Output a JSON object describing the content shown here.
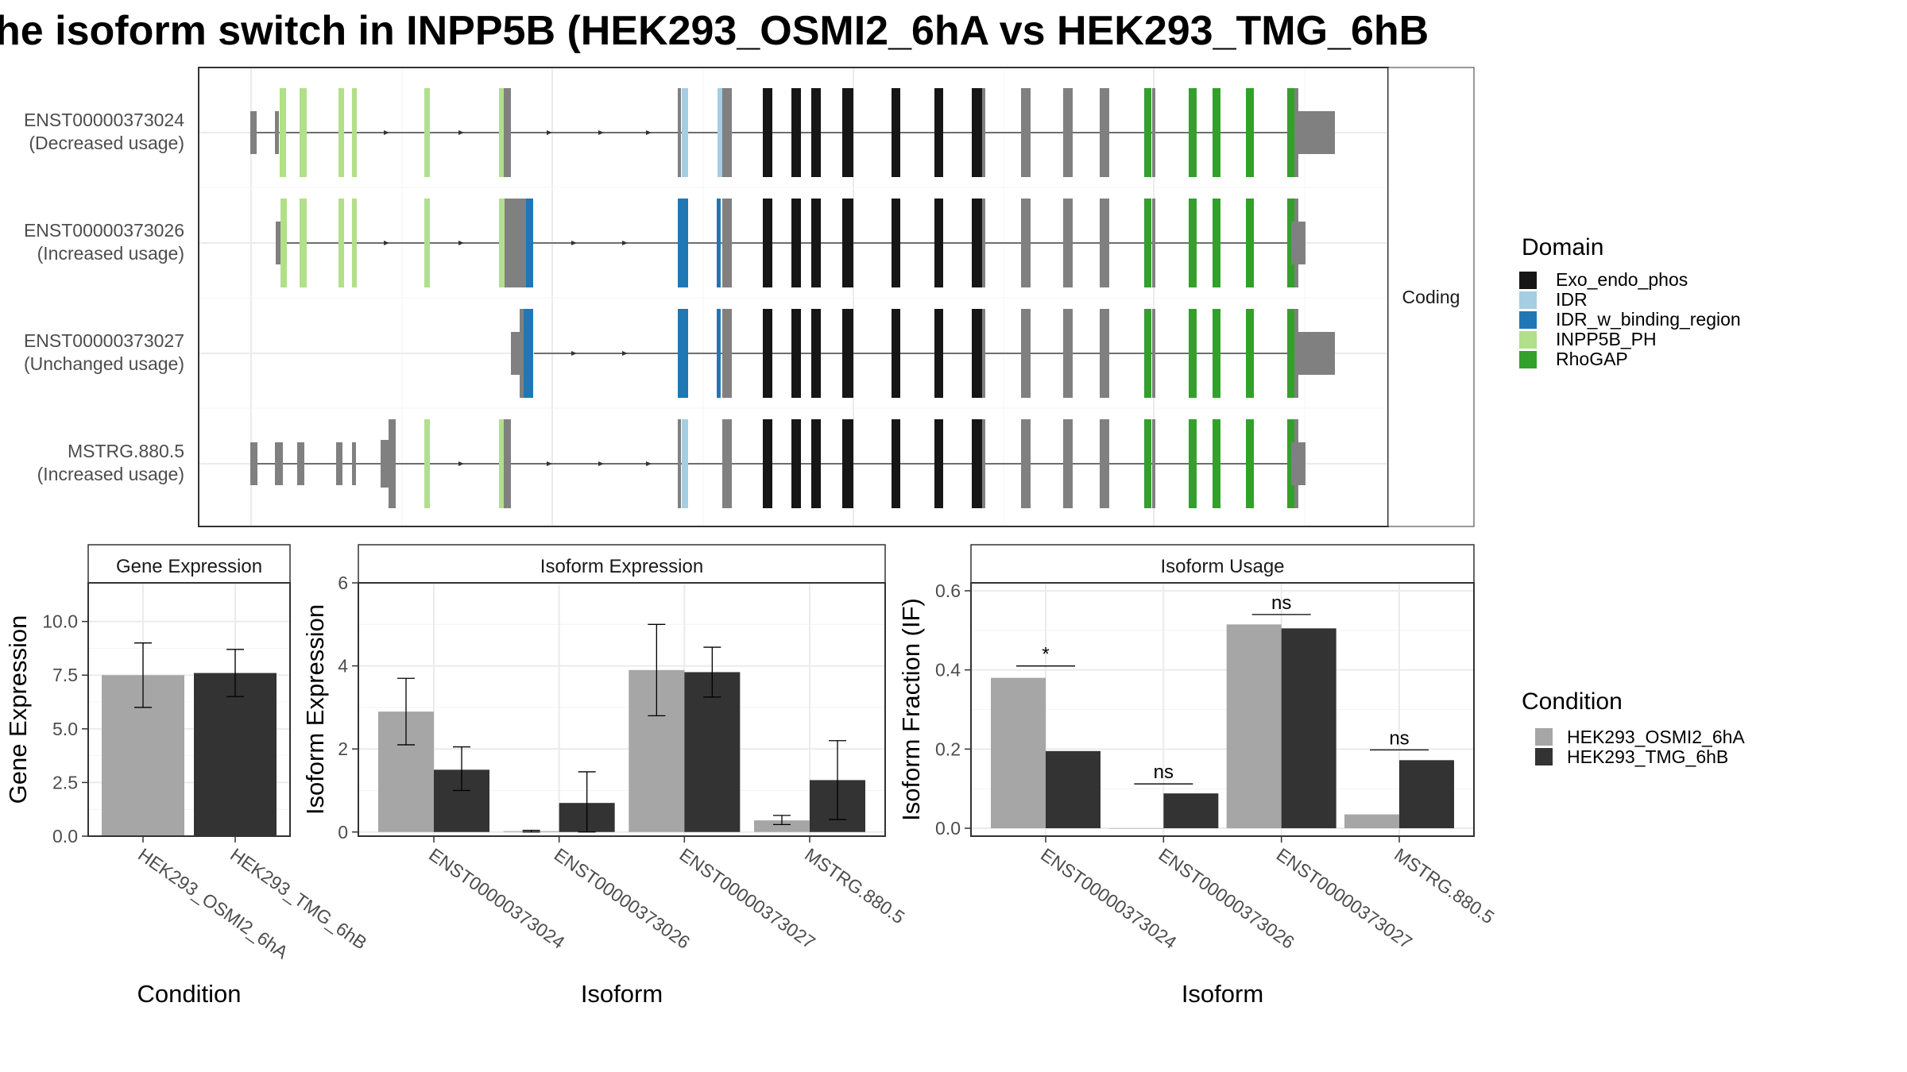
{
  "title": "he isoform switch in INPP5B (HEK293_OSMI2_6hA vs HEK293_TMG_6hB",
  "structure": {
    "facet_label": "Coding",
    "legend_title": "Domain",
    "legend_items": [
      {
        "label": "Exo_endo_phos",
        "color": "#161616"
      },
      {
        "label": "IDR",
        "color": "#a6cee3"
      },
      {
        "label": "IDR_w_binding_region",
        "color": "#1f78b4"
      },
      {
        "label": "INPP5B_PH",
        "color": "#b2df8a"
      },
      {
        "label": "RhoGAP",
        "color": "#33a02c"
      }
    ],
    "transcripts": [
      {
        "id": "ENST00000373024",
        "usage": "(Decreased usage)"
      },
      {
        "id": "ENST00000373026",
        "usage": "(Increased usage)"
      },
      {
        "id": "ENST00000373027",
        "usage": "(Unchanged usage)"
      },
      {
        "id": "MSTRG.880.5",
        "usage": "(Increased usage)"
      }
    ]
  },
  "condition_legend": {
    "title": "Condition",
    "items": [
      {
        "label": "HEK293_OSMI2_6hA",
        "color": "#a6a6a6"
      },
      {
        "label": "HEK293_TMG_6hB",
        "color": "#333333"
      }
    ]
  },
  "chart_data": [
    {
      "type": "bar",
      "title": "Gene Expression",
      "xlabel": "Condition",
      "ylabel": "Gene Expression",
      "ylim": [
        0,
        11.8
      ],
      "yticks": [
        0,
        2.5,
        5,
        7.5,
        10
      ],
      "yticklabels": [
        "0.0",
        "2.5",
        "5.0",
        "7.5",
        "10.0"
      ],
      "categories": [
        "HEK293_OSMI2_6hA",
        "HEK293_TMG_6hB"
      ],
      "values": [
        7.5,
        7.6
      ],
      "errors": [
        [
          6.0,
          9.0
        ],
        [
          6.5,
          8.7
        ]
      ]
    },
    {
      "type": "bar",
      "title": "Isoform Expression",
      "xlabel": "Isoform",
      "ylabel": "Isoform Expression",
      "ylim": [
        -0.1,
        6.0
      ],
      "yticks": [
        0,
        2,
        4,
        6
      ],
      "yticklabels": [
        "0",
        "2",
        "4",
        "6"
      ],
      "categories": [
        "ENST00000373024",
        "ENST00000373026",
        "ENST00000373027",
        "MSTRG.880.5"
      ],
      "series": [
        {
          "name": "HEK293_OSMI2_6hA",
          "values": [
            2.9,
            0.02,
            3.9,
            0.28
          ],
          "errors": [
            [
              2.1,
              3.7
            ],
            [
              0.0,
              0.04
            ],
            [
              2.8,
              5.0
            ],
            [
              0.18,
              0.4
            ]
          ]
        },
        {
          "name": "HEK293_TMG_6hB",
          "values": [
            1.5,
            0.7,
            3.85,
            1.25
          ],
          "errors": [
            [
              1.0,
              2.05
            ],
            [
              0.0,
              1.45
            ],
            [
              3.25,
              4.45
            ],
            [
              0.3,
              2.2
            ]
          ]
        }
      ]
    },
    {
      "type": "bar",
      "title": "Isoform Usage",
      "xlabel": "Isoform",
      "ylabel": "Isoform Fraction (IF)",
      "ylim": [
        -0.02,
        0.62
      ],
      "yticks": [
        0,
        0.2,
        0.4,
        0.6
      ],
      "yticklabels": [
        "0.0",
        "0.2",
        "0.4",
        "0.6"
      ],
      "categories": [
        "ENST00000373024",
        "ENST00000373026",
        "ENST00000373027",
        "MSTRG.880.5"
      ],
      "series": [
        {
          "name": "HEK293_OSMI2_6hA",
          "values": [
            0.38,
            0.0,
            0.515,
            0.035
          ]
        },
        {
          "name": "HEK293_TMG_6hB",
          "values": [
            0.195,
            0.088,
            0.505,
            0.172
          ]
        }
      ],
      "significance": [
        {
          "label": "*",
          "y": 0.41
        },
        {
          "label": "ns",
          "y": 0.112
        },
        {
          "label": "ns",
          "y": 0.54
        },
        {
          "label": "ns",
          "y": 0.198
        }
      ]
    }
  ]
}
